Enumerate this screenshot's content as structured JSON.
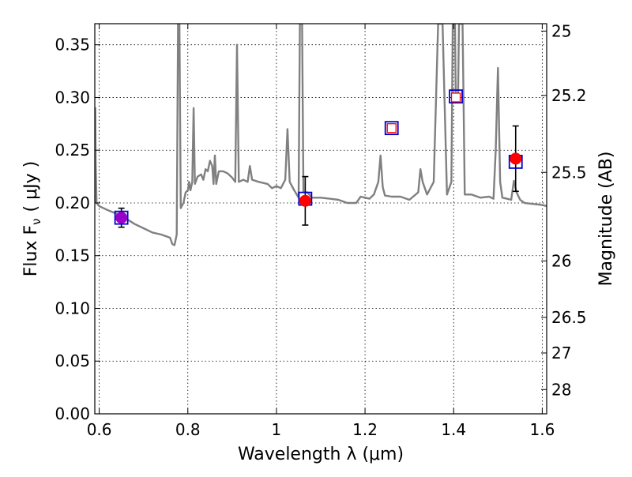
{
  "chart_data": {
    "type": "scatter",
    "xlabel": "Wavelength  λ (μm)",
    "ylabel_left": "Flux  F",
    "ylabel_left_sub": "ν",
    "ylabel_left_unit": "( μJy )",
    "ylabel_right": "Magnitude (AB)",
    "xlim": [
      0.59,
      1.61
    ],
    "ylim": [
      0.0,
      0.37
    ],
    "grid": true,
    "x_ticks": [
      0.6,
      0.8,
      1.0,
      1.2,
      1.4,
      1.6
    ],
    "x_tick_labels": [
      "0.6",
      "0.8",
      "1",
      "1.2",
      "1.4",
      "1.6"
    ],
    "y_ticks": [
      0.0,
      0.05,
      0.1,
      0.15,
      0.2,
      0.25,
      0.3,
      0.35
    ],
    "y_tick_labels": [
      "0.00",
      "0.05",
      "0.10",
      "0.15",
      "0.20",
      "0.25",
      "0.30",
      "0.35"
    ],
    "right_ticks": [
      {
        "mag": "25",
        "flux": 0.363
      },
      {
        "mag": "25.2",
        "flux": 0.302
      },
      {
        "mag": "25.5",
        "flux": 0.229
      },
      {
        "mag": "26",
        "flux": 0.145
      },
      {
        "mag": "26.5",
        "flux": 0.0915
      },
      {
        "mag": "27",
        "flux": 0.0577
      },
      {
        "mag": "28",
        "flux": 0.023
      }
    ],
    "model_spectrum": {
      "color": "#808080",
      "points": [
        [
          0.59,
          0.2
        ],
        [
          0.591,
          0.29
        ],
        [
          0.592,
          0.24
        ],
        [
          0.594,
          0.2
        ],
        [
          0.6,
          0.197
        ],
        [
          0.62,
          0.193
        ],
        [
          0.65,
          0.188
        ],
        [
          0.68,
          0.18
        ],
        [
          0.7,
          0.176
        ],
        [
          0.72,
          0.172
        ],
        [
          0.74,
          0.17
        ],
        [
          0.76,
          0.167
        ],
        [
          0.765,
          0.161
        ],
        [
          0.77,
          0.16
        ],
        [
          0.775,
          0.17
        ],
        [
          0.778,
          0.37
        ],
        [
          0.781,
          0.37
        ],
        [
          0.784,
          0.195
        ],
        [
          0.79,
          0.2
        ],
        [
          0.795,
          0.21
        ],
        [
          0.8,
          0.212
        ],
        [
          0.803,
          0.22
        ],
        [
          0.806,
          0.212
        ],
        [
          0.81,
          0.22
        ],
        [
          0.813,
          0.29
        ],
        [
          0.816,
          0.218
        ],
        [
          0.822,
          0.225
        ],
        [
          0.83,
          0.227
        ],
        [
          0.835,
          0.222
        ],
        [
          0.84,
          0.232
        ],
        [
          0.845,
          0.23
        ],
        [
          0.85,
          0.24
        ],
        [
          0.855,
          0.235
        ],
        [
          0.858,
          0.218
        ],
        [
          0.861,
          0.245
        ],
        [
          0.864,
          0.218
        ],
        [
          0.87,
          0.23
        ],
        [
          0.88,
          0.23
        ],
        [
          0.89,
          0.228
        ],
        [
          0.9,
          0.224
        ],
        [
          0.907,
          0.22
        ],
        [
          0.911,
          0.35
        ],
        [
          0.915,
          0.22
        ],
        [
          0.925,
          0.222
        ],
        [
          0.935,
          0.22
        ],
        [
          0.94,
          0.235
        ],
        [
          0.945,
          0.222
        ],
        [
          0.96,
          0.22
        ],
        [
          0.98,
          0.218
        ],
        [
          0.99,
          0.214
        ],
        [
          1.0,
          0.216
        ],
        [
          1.01,
          0.214
        ],
        [
          1.02,
          0.222
        ],
        [
          1.025,
          0.27
        ],
        [
          1.03,
          0.22
        ],
        [
          1.04,
          0.212
        ],
        [
          1.05,
          0.205
        ],
        [
          1.053,
          0.37
        ],
        [
          1.058,
          0.37
        ],
        [
          1.061,
          0.21
        ],
        [
          1.07,
          0.21
        ],
        [
          1.08,
          0.205
        ],
        [
          1.1,
          0.205
        ],
        [
          1.12,
          0.204
        ],
        [
          1.14,
          0.203
        ],
        [
          1.16,
          0.2
        ],
        [
          1.18,
          0.2
        ],
        [
          1.19,
          0.206
        ],
        [
          1.2,
          0.205
        ],
        [
          1.21,
          0.204
        ],
        [
          1.22,
          0.208
        ],
        [
          1.23,
          0.22
        ],
        [
          1.235,
          0.245
        ],
        [
          1.24,
          0.215
        ],
        [
          1.245,
          0.207
        ],
        [
          1.26,
          0.206
        ],
        [
          1.28,
          0.206
        ],
        [
          1.3,
          0.203
        ],
        [
          1.32,
          0.21
        ],
        [
          1.325,
          0.232
        ],
        [
          1.33,
          0.22
        ],
        [
          1.34,
          0.208
        ],
        [
          1.355,
          0.22
        ],
        [
          1.365,
          0.37
        ],
        [
          1.375,
          0.37
        ],
        [
          1.385,
          0.208
        ],
        [
          1.395,
          0.22
        ],
        [
          1.398,
          0.37
        ],
        [
          1.403,
          0.37
        ],
        [
          1.405,
          0.295
        ],
        [
          1.41,
          0.3
        ],
        [
          1.412,
          0.37
        ],
        [
          1.42,
          0.37
        ],
        [
          1.425,
          0.208
        ],
        [
          1.44,
          0.208
        ],
        [
          1.46,
          0.205
        ],
        [
          1.48,
          0.206
        ],
        [
          1.49,
          0.204
        ],
        [
          1.495,
          0.25
        ],
        [
          1.5,
          0.328
        ],
        [
          1.505,
          0.22
        ],
        [
          1.51,
          0.205
        ],
        [
          1.52,
          0.204
        ],
        [
          1.53,
          0.203
        ],
        [
          1.536,
          0.221
        ],
        [
          1.542,
          0.21
        ],
        [
          1.55,
          0.203
        ],
        [
          1.56,
          0.2
        ],
        [
          1.58,
          0.199
        ],
        [
          1.6,
          0.198
        ],
        [
          1.61,
          0.197
        ]
      ]
    },
    "observed": [
      {
        "x": 0.65,
        "y": 0.186,
        "err": 0.009,
        "color": "#9900cc"
      },
      {
        "x": 1.065,
        "y": 0.202,
        "err": 0.023,
        "color": "#ff0000"
      },
      {
        "x": 1.54,
        "y": 0.242,
        "err": 0.031,
        "color": "#ff0000"
      }
    ],
    "model_photometry": [
      {
        "x": 0.65,
        "y": 0.186
      },
      {
        "x": 1.065,
        "y": 0.204
      },
      {
        "x": 1.26,
        "y": 0.271
      },
      {
        "x": 1.405,
        "y": 0.301
      },
      {
        "x": 1.54,
        "y": 0.239
      }
    ],
    "upper_markers": [
      {
        "x": 1.26,
        "y": 0.271
      },
      {
        "x": 1.405,
        "y": 0.3
      }
    ],
    "colors": {
      "model_box": "#0000cc",
      "upper_box": "#ff0000",
      "errorbar": "#000000",
      "grid": "#000000"
    }
  }
}
